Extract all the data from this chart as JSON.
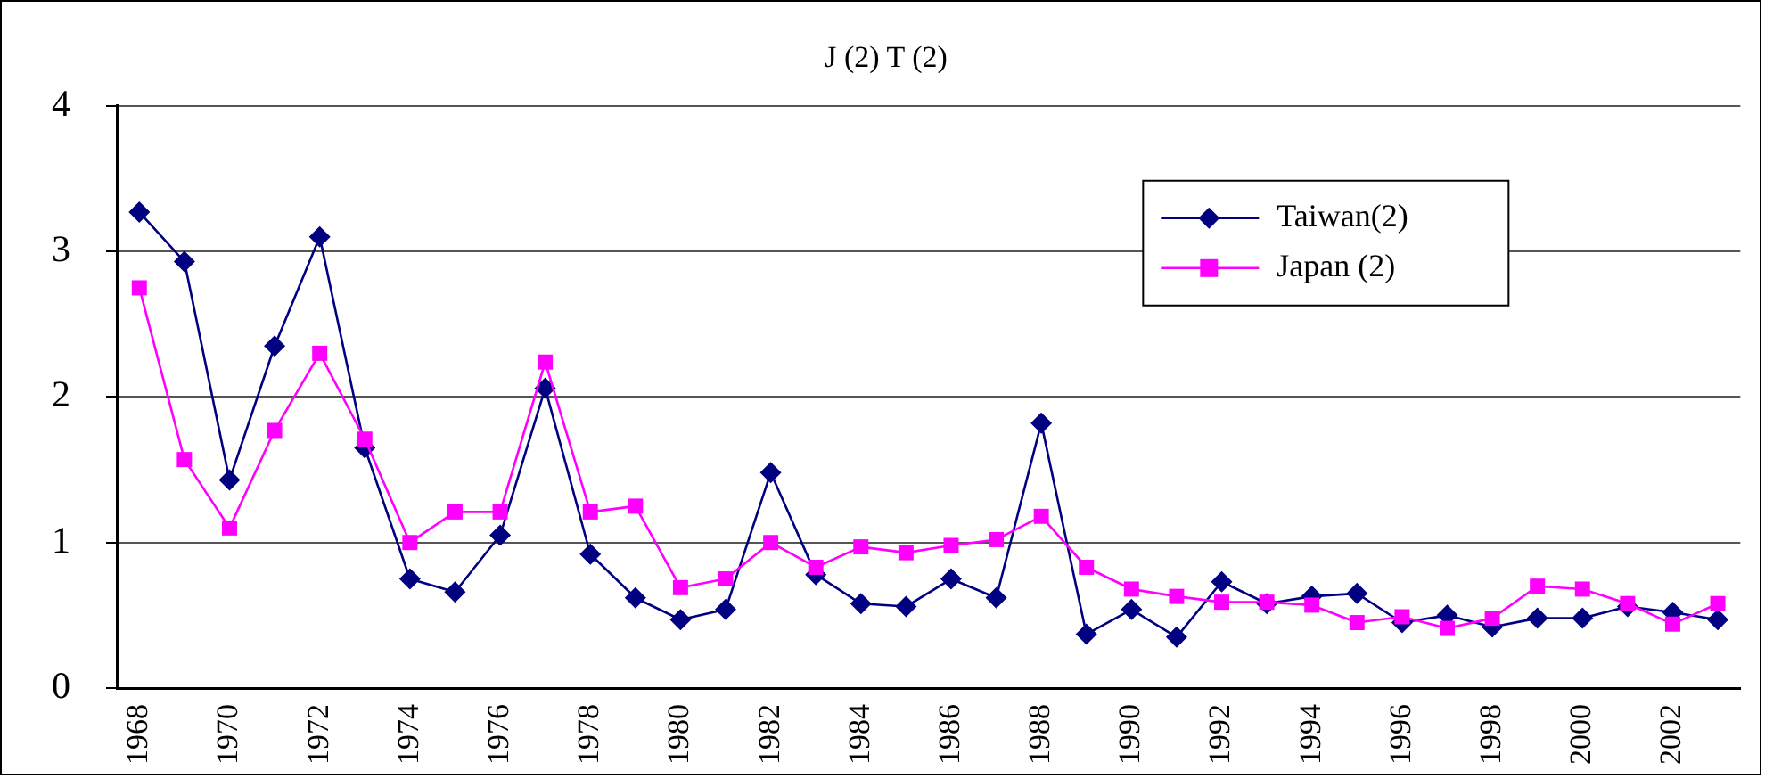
{
  "chart_data": {
    "type": "line",
    "title": "J (2) T (2)",
    "categories": [
      "1968",
      null,
      "1970",
      null,
      "1972",
      null,
      "1974",
      null,
      "1976",
      null,
      "1978",
      null,
      "1980",
      null,
      "1982",
      null,
      "1984",
      null,
      "1986",
      null,
      "1988",
      null,
      "1990",
      null,
      "1992",
      null,
      "1994",
      null,
      "1996",
      null,
      "1998",
      null,
      "2000",
      null,
      "2002",
      null
    ],
    "series": [
      {
        "name": "Taiwan(2)",
        "color": "#000080",
        "marker": "diamond",
        "values": [
          3.27,
          2.93,
          1.43,
          2.35,
          3.1,
          1.65,
          0.75,
          0.66,
          1.05,
          2.06,
          0.92,
          0.62,
          0.47,
          0.54,
          1.48,
          0.78,
          0.58,
          0.56,
          0.75,
          0.62,
          1.82,
          0.37,
          0.54,
          0.35,
          0.73,
          0.58,
          0.63,
          0.65,
          0.45,
          0.5,
          0.42,
          0.48,
          0.48,
          0.56,
          0.52,
          0.47
        ]
      },
      {
        "name": "Japan (2)",
        "color": "#ff00ff",
        "marker": "square",
        "values": [
          2.75,
          1.57,
          1.1,
          1.77,
          2.3,
          1.71,
          1.0,
          1.21,
          1.21,
          2.24,
          1.21,
          1.25,
          0.69,
          0.75,
          1.0,
          0.83,
          0.97,
          0.93,
          0.98,
          1.02,
          1.18,
          0.83,
          0.68,
          0.63,
          0.59,
          0.59,
          0.57,
          0.45,
          0.49,
          0.41,
          0.48,
          0.7,
          0.68,
          0.58,
          0.44,
          0.58
        ]
      }
    ],
    "ylim": [
      0,
      4
    ],
    "yticks": [
      0,
      1,
      2,
      3,
      4
    ],
    "grid": "y",
    "legend": "top right",
    "line_style": "solid"
  }
}
